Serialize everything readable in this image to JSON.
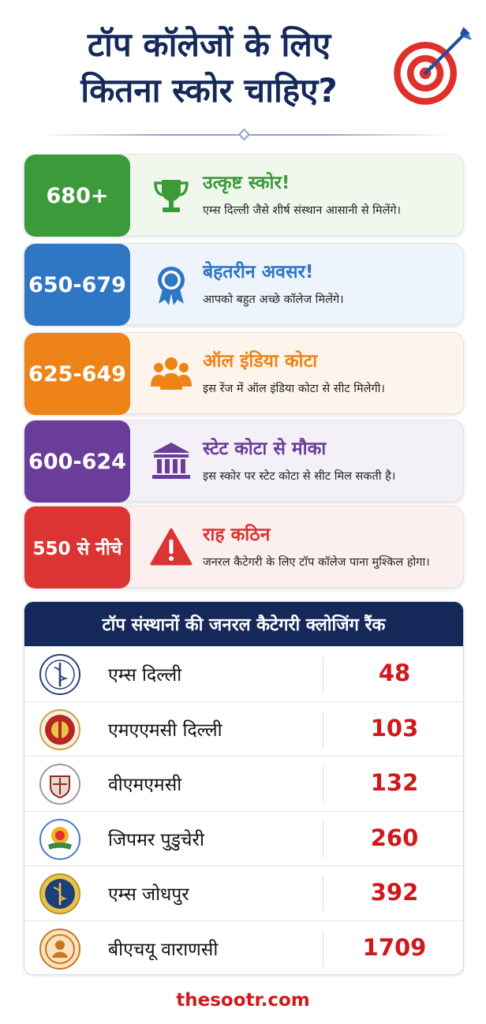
{
  "title": {
    "line1": "टॉप कॉलेजों के लिए",
    "line2": "कितना स्कोर चाहिए?"
  },
  "header_icon": "target-with-arrow-icon",
  "tiers": [
    {
      "score": "680+",
      "heading": "उत्कृष्ट स्कोर!",
      "desc": "एम्स दिल्ली जैसे शीर्ष संस्थान आसानी से मिलेंगे।",
      "color": "#3b9a3a",
      "bg": "#f0f8ee",
      "icon": "trophy-icon"
    },
    {
      "score": "650-679",
      "heading": "बेहतरीन अवसर!",
      "desc": "आपको बहुत अच्छे कॉलेज मिलेंगे।",
      "color": "#2f76c4",
      "bg": "#eef4fb",
      "icon": "award-ribbon-icon"
    },
    {
      "score": "625-649",
      "heading": "ऑल इंडिया कोटा",
      "desc": "इस रेंज में ऑल इंडिया कोटा से सीट मिलेगी।",
      "color": "#ee8318",
      "bg": "#fdf5ec",
      "icon": "people-group-icon"
    },
    {
      "score": "600-624",
      "heading": "स्टेट कोटा से मौका",
      "desc": "इस स्कोर पर स्टेट कोटा से सीट मिल सकती है।",
      "color": "#6a3d9a",
      "bg": "#f4f0f8",
      "icon": "government-building-icon"
    },
    {
      "score": "550 से नीचे",
      "heading": "राह कठिन",
      "desc": "जनरल कैटेगरी के लिए टॉप कॉलेज पाना मुश्किल होगा।",
      "color": "#dc3333",
      "bg": "#fcefef",
      "icon": "warning-icon"
    }
  ],
  "ranking": {
    "heading": "टॉप संस्थानों की जनरल कैटेगरी क्लोजिंग रैंक",
    "rows": [
      {
        "name": "एम्स दिल्ली",
        "rank": "48",
        "emblem": "aiims-delhi-emblem"
      },
      {
        "name": "एमएएमसी दिल्ली",
        "rank": "103",
        "emblem": "mamc-delhi-emblem"
      },
      {
        "name": "वीएमएमसी",
        "rank": "132",
        "emblem": "vmmc-emblem"
      },
      {
        "name": "जिपमर पुडुचेरी",
        "rank": "260",
        "emblem": "jipmer-emblem"
      },
      {
        "name": "एम्स जोधपुर",
        "rank": "392",
        "emblem": "aiims-jodhpur-emblem"
      },
      {
        "name": "बीएचयू वाराणसी",
        "rank": "1709",
        "emblem": "bhu-emblem"
      }
    ]
  },
  "footer": "thesootr.com"
}
